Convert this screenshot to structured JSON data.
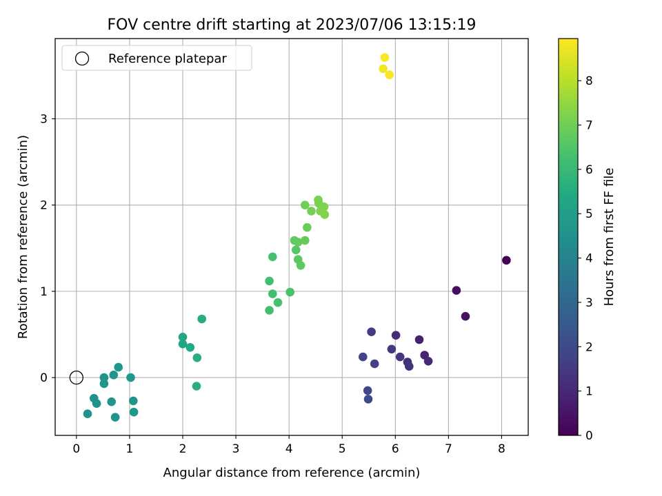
{
  "chart_data": {
    "type": "scatter",
    "title": "FOV centre drift starting at 2023/07/06 13:15:19",
    "xlabel": "Angular distance from reference (arcmin)",
    "ylabel": "Rotation from reference (arcmin)",
    "xlim": [
      -0.4,
      8.5
    ],
    "ylim": [
      -0.67,
      3.93
    ],
    "xticks": [
      0,
      1,
      2,
      3,
      4,
      5,
      6,
      7,
      8
    ],
    "yticks": [
      0,
      1,
      2,
      3
    ],
    "grid": true,
    "legend": {
      "position": "top-left",
      "entries": [
        "Reference platepar"
      ]
    },
    "reference": {
      "x": 0,
      "y": 0
    },
    "colorbar": {
      "label": "Hours from first FF file",
      "range": [
        0,
        8.95
      ],
      "ticks": [
        0,
        1,
        2,
        3,
        4,
        5,
        6,
        7,
        8
      ],
      "colormap": "viridis"
    },
    "points": [
      {
        "x": 8.09,
        "y": 1.36,
        "h": 0.0
      },
      {
        "x": 7.15,
        "y": 1.01,
        "h": 0.3
      },
      {
        "x": 7.32,
        "y": 0.71,
        "h": 0.4
      },
      {
        "x": 6.45,
        "y": 0.44,
        "h": 0.8
      },
      {
        "x": 6.55,
        "y": 0.26,
        "h": 0.9
      },
      {
        "x": 6.62,
        "y": 0.19,
        "h": 1.0
      },
      {
        "x": 6.01,
        "y": 0.49,
        "h": 1.1
      },
      {
        "x": 6.23,
        "y": 0.18,
        "h": 1.2
      },
      {
        "x": 6.26,
        "y": 0.13,
        "h": 1.3
      },
      {
        "x": 6.09,
        "y": 0.24,
        "h": 1.4
      },
      {
        "x": 5.93,
        "y": 0.33,
        "h": 1.5
      },
      {
        "x": 5.55,
        "y": 0.53,
        "h": 1.6
      },
      {
        "x": 5.61,
        "y": 0.16,
        "h": 1.7
      },
      {
        "x": 5.39,
        "y": 0.24,
        "h": 1.8
      },
      {
        "x": 5.48,
        "y": -0.15,
        "h": 1.9
      },
      {
        "x": 5.49,
        "y": -0.25,
        "h": 2.0
      },
      {
        "x": 0.52,
        "y": 0.0,
        "h": 4.55
      },
      {
        "x": 0.52,
        "y": -0.07,
        "h": 4.6
      },
      {
        "x": 0.7,
        "y": 0.03,
        "h": 4.65
      },
      {
        "x": 0.79,
        "y": 0.12,
        "h": 4.7
      },
      {
        "x": 1.02,
        "y": 0.0,
        "h": 4.75
      },
      {
        "x": 0.33,
        "y": -0.24,
        "h": 4.5
      },
      {
        "x": 0.38,
        "y": -0.3,
        "h": 4.55
      },
      {
        "x": 0.66,
        "y": -0.28,
        "h": 4.6
      },
      {
        "x": 1.07,
        "y": -0.27,
        "h": 4.65
      },
      {
        "x": 1.08,
        "y": -0.4,
        "h": 4.7
      },
      {
        "x": 0.21,
        "y": -0.42,
        "h": 4.5
      },
      {
        "x": 0.73,
        "y": -0.46,
        "h": 4.6
      },
      {
        "x": 2.0,
        "y": 0.47,
        "h": 5.3
      },
      {
        "x": 2.0,
        "y": 0.39,
        "h": 5.35
      },
      {
        "x": 2.14,
        "y": 0.35,
        "h": 5.4
      },
      {
        "x": 2.36,
        "y": 0.68,
        "h": 5.5
      },
      {
        "x": 2.27,
        "y": 0.23,
        "h": 5.55
      },
      {
        "x": 2.26,
        "y": -0.1,
        "h": 5.6
      },
      {
        "x": 3.69,
        "y": 1.4,
        "h": 6.3
      },
      {
        "x": 3.63,
        "y": 1.12,
        "h": 6.2
      },
      {
        "x": 3.69,
        "y": 0.97,
        "h": 6.25
      },
      {
        "x": 3.79,
        "y": 0.87,
        "h": 6.3
      },
      {
        "x": 3.63,
        "y": 0.78,
        "h": 6.2
      },
      {
        "x": 4.02,
        "y": 0.99,
        "h": 6.35
      },
      {
        "x": 4.13,
        "y": 1.48,
        "h": 6.6
      },
      {
        "x": 4.17,
        "y": 1.37,
        "h": 6.65
      },
      {
        "x": 4.22,
        "y": 1.3,
        "h": 6.7
      },
      {
        "x": 4.1,
        "y": 1.59,
        "h": 6.75
      },
      {
        "x": 4.17,
        "y": 1.57,
        "h": 6.8
      },
      {
        "x": 4.3,
        "y": 1.59,
        "h": 6.85
      },
      {
        "x": 4.34,
        "y": 1.74,
        "h": 6.9
      },
      {
        "x": 4.3,
        "y": 2.0,
        "h": 7.0
      },
      {
        "x": 4.42,
        "y": 1.93,
        "h": 7.05
      },
      {
        "x": 4.55,
        "y": 2.06,
        "h": 7.1
      },
      {
        "x": 4.56,
        "y": 2.02,
        "h": 7.15
      },
      {
        "x": 4.59,
        "y": 1.93,
        "h": 7.2
      },
      {
        "x": 4.66,
        "y": 1.98,
        "h": 7.25
      },
      {
        "x": 4.67,
        "y": 1.89,
        "h": 7.3
      },
      {
        "x": 5.8,
        "y": 3.71,
        "h": 8.9
      },
      {
        "x": 5.77,
        "y": 3.58,
        "h": 8.8
      },
      {
        "x": 5.89,
        "y": 3.51,
        "h": 8.85
      }
    ]
  }
}
